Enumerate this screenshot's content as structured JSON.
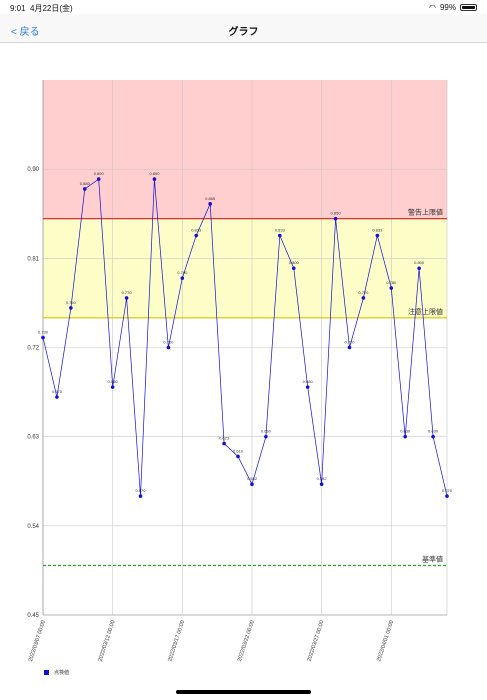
{
  "status_bar": {
    "time": "9:01",
    "date": "4月22日(金)",
    "battery": "99%",
    "wifi_icon": "wifi-icon",
    "battery_icon": "battery-icon"
  },
  "nav": {
    "back_label": "< 戻る",
    "title": "グラフ"
  },
  "chart_data": {
    "type": "line",
    "title": "",
    "xlabel": "",
    "ylabel": "",
    "ylim": [
      0.45,
      0.99
    ],
    "y_ticks": [
      "0.45",
      "0.54",
      "0.63",
      "0.72",
      "0.81",
      "0.90"
    ],
    "x_tick_labels": [
      {
        "label": "2022/03/07 00:00",
        "index": 0
      },
      {
        "label": "2022/03/12 00:00",
        "index": 5
      },
      {
        "label": "2022/03/17 00:00",
        "index": 10
      },
      {
        "label": "2022/03/22 00:00",
        "index": 15
      },
      {
        "label": "2022/03/27 00:00",
        "index": 20
      },
      {
        "label": "2022/04/01 00:00",
        "index": 25
      }
    ],
    "bands": [
      {
        "name": "warning",
        "from": 0.85,
        "to": 0.99,
        "color": "#ffcece"
      },
      {
        "name": "caution",
        "from": 0.75,
        "to": 0.85,
        "color": "#fdfdc8"
      }
    ],
    "limit_lines": [
      {
        "label": "警告上限値",
        "value": 0.85,
        "color": "#d92020",
        "style": "solid"
      },
      {
        "label": "注意上限値",
        "value": 0.75,
        "color": "#e0c000",
        "style": "solid"
      },
      {
        "label": "基準値",
        "value": 0.5,
        "color": "#22aa22",
        "style": "dashed"
      }
    ],
    "series": [
      {
        "name": "点検値",
        "color": "#1010d8",
        "values": [
          0.73,
          0.67,
          0.76,
          0.88,
          0.89,
          0.68,
          0.77,
          0.57,
          0.89,
          0.72,
          0.79,
          0.833,
          0.865,
          0.623,
          0.61,
          0.582,
          0.63,
          0.833,
          0.8,
          0.68,
          0.582,
          0.85,
          0.72,
          0.77,
          0.833,
          0.78,
          0.63,
          0.8,
          0.63,
          0.57
        ],
        "labels": [
          "0.730",
          "0.670",
          "0.760",
          "0.880",
          "0.890",
          "0.680",
          "0.770",
          "0.570",
          "0.890",
          "0.720",
          "0.790",
          "0.833",
          "0.865",
          "0.623",
          "0.610",
          "0.582",
          "0.630",
          "0.833",
          "0.800",
          "0.680",
          "0.582",
          "0.850",
          "0.720",
          "0.770",
          "0.833",
          "0.780",
          "0.630",
          "0.800",
          "0.630",
          "0.570"
        ]
      }
    ],
    "legend": "bottom-left"
  }
}
